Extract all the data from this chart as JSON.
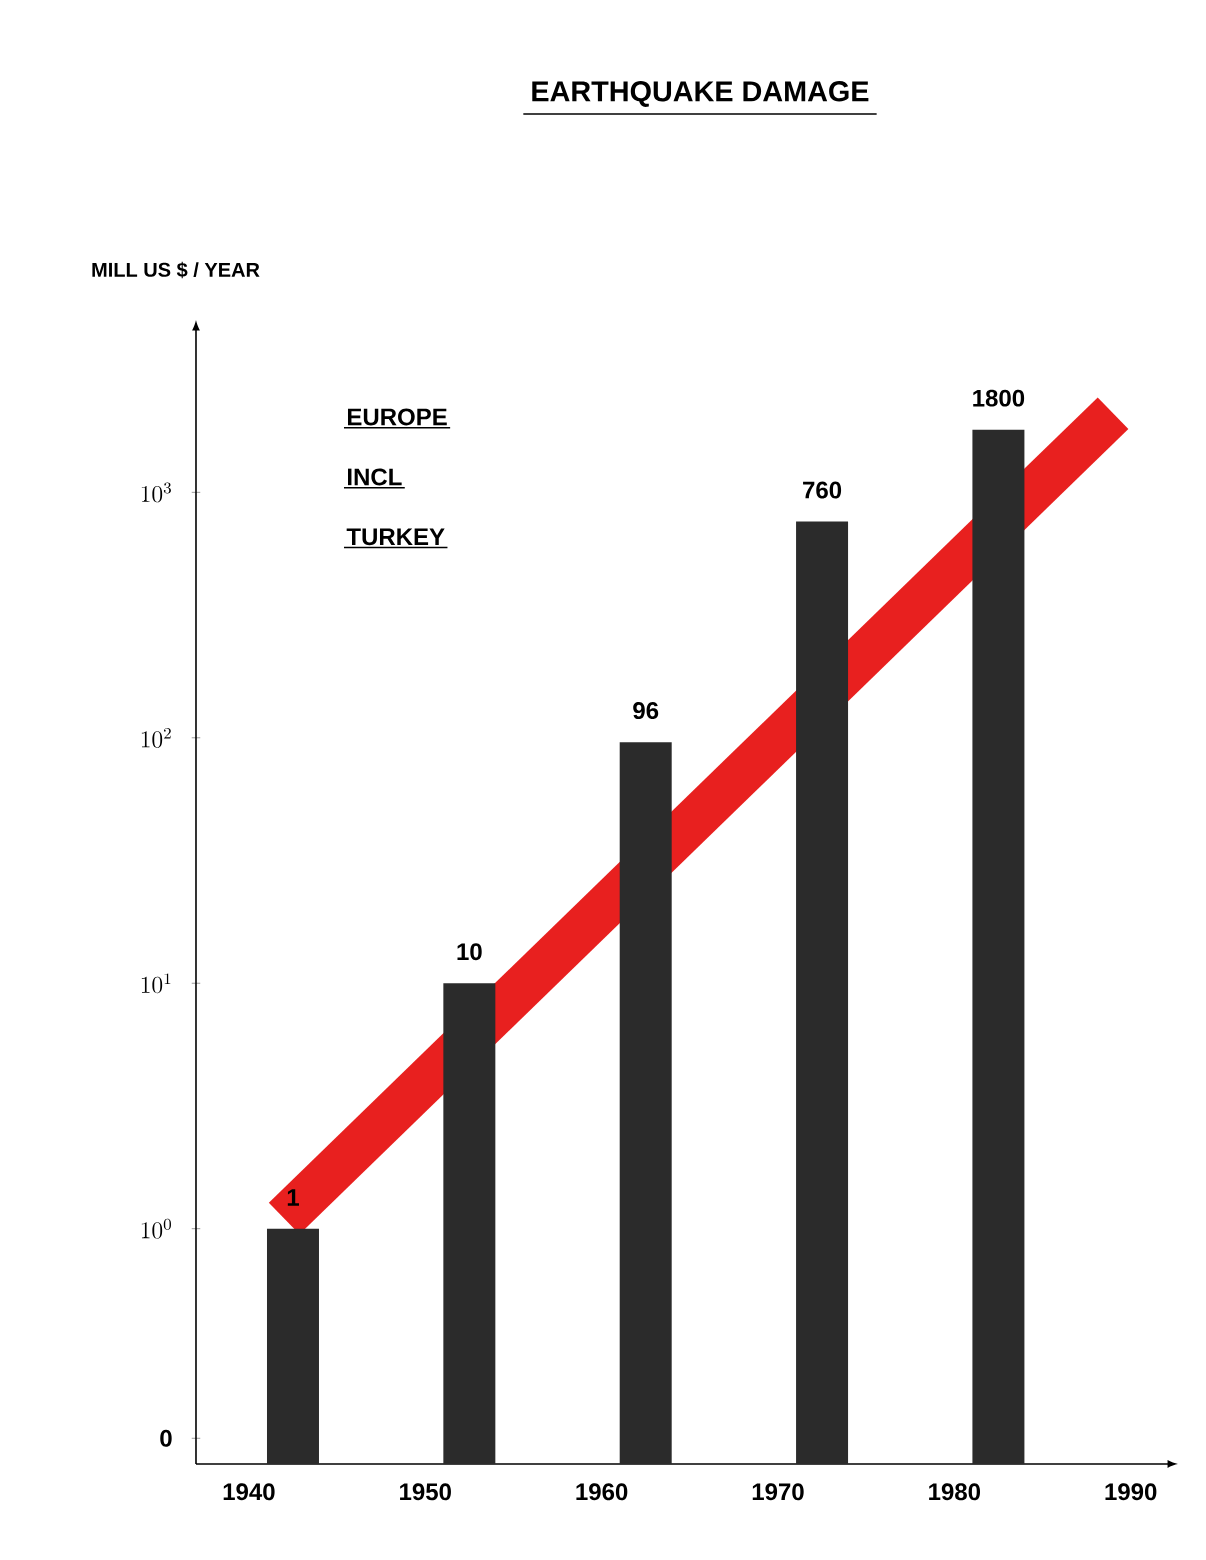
{
  "chart_data": {
    "type": "bar",
    "title": "EARTHQUAKE DAMAGE",
    "ylabel": "MILL US  $ / YEAR",
    "annotations": [
      "EUROPE",
      "INCL",
      "TURKEY"
    ],
    "x": [
      1942.5,
      1952.5,
      1962.5,
      1972.5,
      1982.5
    ],
    "series": [
      {
        "type": "line",
        "color": "#e8201f",
        "x": [
          1942,
          1989
        ],
        "values": [
          1.1,
          2100
        ]
      },
      {
        "color": "#2b2b2b",
        "values": [
          1,
          10,
          96,
          760,
          1800
        ],
        "value_labels": [
          "1",
          "10",
          "96",
          "760",
          "1800"
        ]
      }
    ],
    "log": "y",
    "xlim": [
      1937,
      1992
    ],
    "ylim": [
      0.11,
      4500
    ],
    "xticks": [
      1940,
      1950,
      1960,
      1970,
      1980,
      1990
    ],
    "yticks": [
      {
        "value": 0.14,
        "label": "0"
      },
      {
        "value": 1,
        "label": "10^{0}"
      },
      {
        "value": 10,
        "label": "10^{1}"
      },
      {
        "value": 100,
        "label": "10^{2}"
      },
      {
        "value": 1000,
        "label": "10^{3}"
      }
    ]
  }
}
